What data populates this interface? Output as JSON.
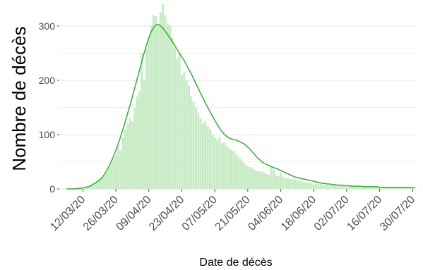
{
  "chart_data": {
    "type": "bar",
    "xlabel": "Date de décès",
    "ylabel": "Nombre de décès",
    "x_ticks": [
      "12/03/20",
      "26/03/20",
      "09/04/20",
      "23/04/20",
      "07/05/20",
      "21/05/20",
      "04/06/20",
      "18/06/20",
      "02/07/20",
      "16/07/20",
      "30/07/20"
    ],
    "y_ticks": [
      0,
      100,
      200,
      300
    ],
    "xlim": [
      "2020-03-02",
      "2020-08-01"
    ],
    "ylim": [
      0,
      340
    ],
    "grid": true,
    "bar_color": "#c7ebc5",
    "line_color": "#2db52d",
    "start_date": "2020-03-05",
    "daily_deaths": [
      1,
      0,
      1,
      0,
      2,
      1,
      2,
      3,
      4,
      5,
      6,
      8,
      10,
      14,
      18,
      22,
      25,
      30,
      38,
      45,
      55,
      62,
      78,
      70,
      95,
      110,
      120,
      130,
      125,
      150,
      170,
      180,
      250,
      200,
      260,
      280,
      300,
      320,
      318,
      300,
      325,
      340,
      320,
      305,
      300,
      280,
      260,
      240,
      250,
      210,
      215,
      200,
      190,
      170,
      160,
      150,
      140,
      130,
      120,
      125,
      115,
      110,
      100,
      95,
      90,
      95,
      85,
      85,
      80,
      75,
      72,
      70,
      65,
      60,
      55,
      50,
      45,
      42,
      40,
      38,
      35,
      33,
      32,
      33,
      30,
      28,
      26,
      40,
      35,
      25,
      24,
      30,
      22,
      20,
      20,
      18,
      18,
      17,
      16,
      15,
      14,
      13,
      12,
      12,
      11,
      10,
      10,
      9,
      9,
      8,
      8,
      8,
      7,
      7,
      7,
      6,
      6,
      6,
      5,
      5,
      5,
      5,
      5,
      4,
      4,
      4,
      4,
      4,
      3,
      3,
      3,
      3,
      3,
      3,
      3,
      2,
      3,
      2,
      2,
      2,
      2,
      3,
      2,
      2,
      2,
      3,
      3,
      2,
      1
    ],
    "smoothed": [
      0,
      0,
      0,
      0,
      0,
      1,
      1,
      2,
      3,
      4,
      5,
      8,
      10,
      13,
      16,
      20,
      26,
      33,
      41,
      50,
      60,
      71,
      83,
      96,
      110,
      124,
      139,
      154,
      170,
      186,
      202,
      218,
      234,
      250,
      265,
      278,
      289,
      297,
      302,
      303,
      300,
      296,
      290,
      284,
      278,
      271,
      264,
      257,
      250,
      243,
      236,
      228,
      220,
      212,
      203,
      194,
      185,
      176,
      167,
      158,
      150,
      142,
      134,
      126,
      119,
      112,
      106,
      101,
      97,
      94,
      92,
      91,
      90,
      88,
      86,
      84,
      81,
      77,
      73,
      68,
      63,
      58,
      54,
      50,
      47,
      45,
      43,
      41,
      39,
      38,
      36,
      34,
      32,
      30,
      28,
      26,
      24,
      22,
      21,
      20,
      19,
      18,
      17,
      16,
      15,
      14,
      13,
      12,
      11,
      10,
      10,
      9,
      9,
      8,
      8,
      7,
      7,
      7,
      6,
      6,
      6,
      5,
      5,
      5,
      5,
      5,
      4,
      4,
      4,
      4,
      4,
      4,
      4,
      3,
      3,
      3,
      3,
      3,
      3,
      3,
      3,
      3,
      3,
      3,
      3,
      3,
      3,
      3,
      3
    ]
  }
}
